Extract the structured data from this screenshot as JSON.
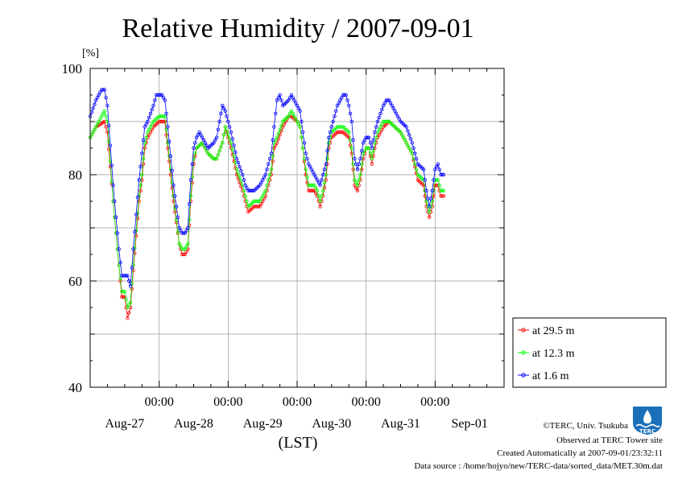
{
  "chart_data": {
    "type": "line",
    "title": "Relative Humidity / 2007-09-01",
    "ylabel": "[%]",
    "xlabel": "(LST)",
    "ylim": [
      40,
      100
    ],
    "yticks": [
      40,
      60,
      80,
      100
    ],
    "grid": true,
    "legend_position": "right-bottom",
    "x_units": "hours from 2007-08-26 00:00 LST",
    "xlim": [
      0,
      144
    ],
    "time_tick_labels": [
      "00:00",
      "00:00",
      "00:00",
      "00:00",
      "00:00"
    ],
    "date_labels": [
      "Aug-27",
      "Aug-28",
      "Aug-29",
      "Aug-30",
      "Aug-31",
      "Sep-01"
    ],
    "series": [
      {
        "name": "at 29.5 m",
        "color": "#ff0000",
        "key": [
          [
            0,
            87
          ],
          [
            2,
            89
          ],
          [
            5,
            90
          ],
          [
            6,
            88
          ],
          [
            8,
            75
          ],
          [
            10,
            63
          ],
          [
            11,
            57
          ],
          [
            12,
            57
          ],
          [
            13,
            53
          ],
          [
            14,
            55
          ],
          [
            15,
            62
          ],
          [
            17,
            75
          ],
          [
            18,
            79
          ],
          [
            19,
            85
          ],
          [
            20,
            87
          ],
          [
            22,
            89
          ],
          [
            24,
            90
          ],
          [
            26,
            90
          ],
          [
            27,
            85
          ],
          [
            29,
            75
          ],
          [
            31,
            67
          ],
          [
            32,
            65
          ],
          [
            33,
            65
          ],
          [
            34,
            66
          ],
          [
            35,
            75
          ],
          [
            36,
            82
          ],
          [
            37,
            85
          ],
          [
            39,
            86
          ],
          [
            40,
            85
          ],
          [
            41,
            84
          ],
          [
            43,
            83
          ],
          [
            44,
            83
          ],
          [
            46,
            86
          ],
          [
            47,
            89
          ],
          [
            49,
            85
          ],
          [
            51,
            80
          ],
          [
            53,
            77
          ],
          [
            54,
            75
          ],
          [
            55,
            73
          ],
          [
            57,
            74
          ],
          [
            59,
            74
          ],
          [
            61,
            76
          ],
          [
            63,
            80
          ],
          [
            64,
            85
          ],
          [
            65,
            86
          ],
          [
            67,
            89
          ],
          [
            69,
            91
          ],
          [
            70,
            91
          ],
          [
            72,
            90
          ],
          [
            73,
            89
          ],
          [
            74,
            85
          ],
          [
            75,
            80
          ],
          [
            76,
            77
          ],
          [
            78,
            77
          ],
          [
            79,
            76
          ],
          [
            80,
            74
          ],
          [
            81,
            76
          ],
          [
            82,
            79
          ],
          [
            83,
            85
          ],
          [
            84,
            87
          ],
          [
            86,
            88
          ],
          [
            88,
            88
          ],
          [
            90,
            87
          ],
          [
            91,
            84
          ],
          [
            92,
            78
          ],
          [
            93,
            77
          ],
          [
            94,
            79
          ],
          [
            95,
            83
          ],
          [
            96,
            85
          ],
          [
            97,
            85
          ],
          [
            98,
            82
          ],
          [
            99,
            85
          ],
          [
            100,
            87
          ],
          [
            102,
            89
          ],
          [
            104,
            90
          ],
          [
            106,
            89
          ],
          [
            108,
            88
          ],
          [
            109,
            87
          ],
          [
            110,
            86
          ],
          [
            112,
            84
          ],
          [
            114,
            79
          ],
          [
            116,
            78
          ],
          [
            117,
            74
          ],
          [
            118,
            72
          ],
          [
            119,
            74
          ],
          [
            120,
            78
          ],
          [
            121,
            78
          ],
          [
            122,
            76
          ],
          [
            123,
            76
          ]
        ]
      },
      {
        "name": "at 12.3 m",
        "color": "#00ff00",
        "key": [
          [
            0,
            87
          ],
          [
            2,
            89
          ],
          [
            5,
            92
          ],
          [
            6,
            90
          ],
          [
            8,
            75
          ],
          [
            10,
            63
          ],
          [
            11,
            58
          ],
          [
            12,
            58
          ],
          [
            13,
            55
          ],
          [
            14,
            56
          ],
          [
            15,
            63
          ],
          [
            17,
            76
          ],
          [
            18,
            80
          ],
          [
            19,
            86
          ],
          [
            20,
            88
          ],
          [
            22,
            90
          ],
          [
            24,
            91
          ],
          [
            26,
            91
          ],
          [
            27,
            86
          ],
          [
            29,
            76
          ],
          [
            31,
            67
          ],
          [
            32,
            66
          ],
          [
            33,
            66
          ],
          [
            34,
            67
          ],
          [
            35,
            76
          ],
          [
            36,
            83
          ],
          [
            37,
            85
          ],
          [
            39,
            86
          ],
          [
            40,
            85
          ],
          [
            41,
            84
          ],
          [
            43,
            83
          ],
          [
            44,
            83
          ],
          [
            46,
            86
          ],
          [
            47,
            89
          ],
          [
            49,
            86
          ],
          [
            51,
            81
          ],
          [
            53,
            78
          ],
          [
            54,
            76
          ],
          [
            55,
            74
          ],
          [
            57,
            75
          ],
          [
            59,
            75
          ],
          [
            61,
            77
          ],
          [
            63,
            81
          ],
          [
            64,
            86
          ],
          [
            65,
            87
          ],
          [
            67,
            90
          ],
          [
            69,
            91
          ],
          [
            70,
            92
          ],
          [
            72,
            90
          ],
          [
            73,
            89
          ],
          [
            74,
            85
          ],
          [
            75,
            81
          ],
          [
            76,
            78
          ],
          [
            78,
            78
          ],
          [
            79,
            77
          ],
          [
            80,
            75
          ],
          [
            81,
            77
          ],
          [
            82,
            80
          ],
          [
            83,
            86
          ],
          [
            84,
            88
          ],
          [
            86,
            89
          ],
          [
            88,
            89
          ],
          [
            90,
            88
          ],
          [
            91,
            85
          ],
          [
            92,
            79
          ],
          [
            93,
            78
          ],
          [
            94,
            80
          ],
          [
            95,
            84
          ],
          [
            96,
            85
          ],
          [
            97,
            85
          ],
          [
            98,
            83
          ],
          [
            99,
            86
          ],
          [
            100,
            88
          ],
          [
            102,
            90
          ],
          [
            104,
            90
          ],
          [
            106,
            89
          ],
          [
            108,
            88
          ],
          [
            109,
            87
          ],
          [
            110,
            86
          ],
          [
            112,
            84
          ],
          [
            114,
            80
          ],
          [
            116,
            79
          ],
          [
            117,
            75
          ],
          [
            118,
            73
          ],
          [
            119,
            75
          ],
          [
            120,
            79
          ],
          [
            121,
            79
          ],
          [
            122,
            77
          ],
          [
            123,
            77
          ]
        ]
      },
      {
        "name": "at 1.6 m",
        "color": "#0000ff",
        "key": [
          [
            0,
            91
          ],
          [
            2,
            94
          ],
          [
            4,
            96
          ],
          [
            5,
            96
          ],
          [
            6,
            93
          ],
          [
            8,
            78
          ],
          [
            10,
            66
          ],
          [
            11,
            61
          ],
          [
            12,
            61
          ],
          [
            13,
            61
          ],
          [
            14,
            59
          ],
          [
            15,
            66
          ],
          [
            17,
            79
          ],
          [
            18,
            84
          ],
          [
            19,
            89
          ],
          [
            20,
            90
          ],
          [
            22,
            93
          ],
          [
            23,
            95
          ],
          [
            25,
            95
          ],
          [
            26,
            94
          ],
          [
            27,
            89
          ],
          [
            29,
            78
          ],
          [
            31,
            70
          ],
          [
            32,
            69
          ],
          [
            33,
            69
          ],
          [
            34,
            70
          ],
          [
            35,
            79
          ],
          [
            36,
            85
          ],
          [
            37,
            87
          ],
          [
            38,
            88
          ],
          [
            39,
            87
          ],
          [
            40,
            86
          ],
          [
            41,
            85
          ],
          [
            43,
            86
          ],
          [
            44,
            87
          ],
          [
            45,
            90
          ],
          [
            46,
            93
          ],
          [
            47,
            92
          ],
          [
            49,
            88
          ],
          [
            51,
            83
          ],
          [
            53,
            80
          ],
          [
            54,
            78
          ],
          [
            55,
            77
          ],
          [
            57,
            77
          ],
          [
            59,
            78
          ],
          [
            61,
            80
          ],
          [
            63,
            84
          ],
          [
            64,
            89
          ],
          [
            65,
            94
          ],
          [
            66,
            95
          ],
          [
            67,
            93
          ],
          [
            69,
            94
          ],
          [
            70,
            95
          ],
          [
            72,
            93
          ],
          [
            73,
            92
          ],
          [
            74,
            88
          ],
          [
            75,
            84
          ],
          [
            76,
            82
          ],
          [
            78,
            80
          ],
          [
            79,
            79
          ],
          [
            80,
            78
          ],
          [
            81,
            80
          ],
          [
            82,
            82
          ],
          [
            83,
            87
          ],
          [
            84,
            89
          ],
          [
            86,
            93
          ],
          [
            88,
            95
          ],
          [
            89,
            95
          ],
          [
            90,
            93
          ],
          [
            91,
            90
          ],
          [
            92,
            83
          ],
          [
            93,
            81
          ],
          [
            94,
            83
          ],
          [
            95,
            86
          ],
          [
            96,
            87
          ],
          [
            97,
            87
          ],
          [
            98,
            85
          ],
          [
            99,
            88
          ],
          [
            100,
            90
          ],
          [
            102,
            93
          ],
          [
            103,
            94
          ],
          [
            104,
            94
          ],
          [
            106,
            92
          ],
          [
            108,
            90
          ],
          [
            110,
            89
          ],
          [
            112,
            86
          ],
          [
            114,
            82
          ],
          [
            116,
            81
          ],
          [
            117,
            77
          ],
          [
            118,
            74
          ],
          [
            119,
            77
          ],
          [
            120,
            81
          ],
          [
            121,
            82
          ],
          [
            122,
            80
          ],
          [
            123,
            80
          ]
        ]
      }
    ]
  },
  "footer": {
    "copyright": "©TERC, Univ. Tsukuba",
    "observed": "Observed at TERC Tower site",
    "created": "Created Automatically at 2007-09-01/23:32:11",
    "source": "Data source : /home/hojyo/new/TERC-data/sorted_data/MET.30m.dat"
  },
  "logo": {
    "text": "TERC",
    "color": "#1a6fb8"
  }
}
